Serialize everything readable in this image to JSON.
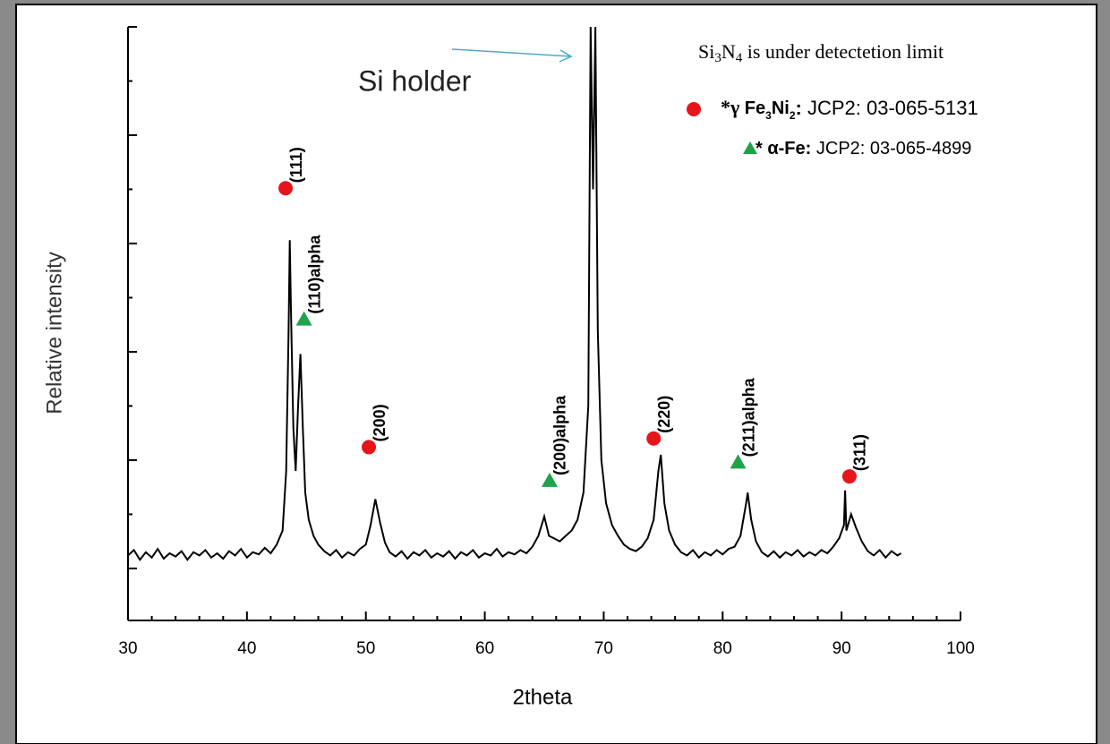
{
  "chart_data": {
    "type": "line",
    "color": "#000000",
    "x_label": "2theta",
    "y_label": "Relative intensity",
    "xlim": [
      30,
      100
    ],
    "xticks": [
      30,
      40,
      50,
      60,
      70,
      80,
      90,
      100
    ],
    "xminor_ticks": [
      32,
      34,
      36,
      38,
      42,
      44,
      46,
      48,
      52,
      54,
      56,
      58,
      62,
      64,
      66,
      68,
      72,
      74,
      76,
      78,
      82,
      84,
      86,
      88,
      92,
      94,
      96,
      98
    ],
    "ylim": [
      -0.48,
      5
    ],
    "yticks": [
      0,
      1,
      2,
      3,
      4,
      5
    ],
    "yminor_ticks": [
      0.5,
      1.5,
      2.5,
      3.5,
      4.5
    ],
    "x": [
      30,
      30.5,
      31,
      31.5,
      32,
      32.5,
      33,
      33.5,
      34,
      34.5,
      35,
      35.5,
      36,
      36.5,
      37,
      37.5,
      38,
      38.5,
      39,
      39.5,
      40,
      40.5,
      41,
      41.5,
      42,
      42.5,
      43,
      43.3,
      43.5,
      43.6,
      43.7,
      43.9,
      44.1,
      44.3,
      44.5,
      44.7,
      44.9,
      45.2,
      45.6,
      46,
      46.5,
      47,
      47.5,
      48,
      48.5,
      49,
      49.5,
      50,
      50.4,
      50.8,
      51.2,
      51.6,
      52,
      52.5,
      53,
      53.5,
      54,
      54.5,
      55,
      55.5,
      56,
      56.5,
      57,
      57.5,
      58,
      58.5,
      59,
      59.5,
      60,
      60.5,
      61,
      61.5,
      62,
      62.5,
      63,
      63.5,
      64,
      64.5,
      65,
      65.4,
      65.8,
      66.3,
      66.8,
      67.3,
      67.8,
      68.3,
      68.7,
      68.9,
      69.1,
      69.3,
      69.5,
      69.8,
      70.2,
      70.7,
      71.2,
      71.7,
      72.2,
      72.7,
      73.2,
      73.7,
      74.2,
      74.6,
      74.8,
      75.1,
      75.5,
      76,
      76.5,
      77,
      77.5,
      78,
      78.5,
      79,
      79.5,
      80,
      80.5,
      81,
      81.5,
      82,
      82.1,
      82.4,
      82.8,
      83.3,
      83.8,
      84.3,
      84.8,
      85.3,
      85.8,
      86.3,
      86.8,
      87.3,
      87.8,
      88.3,
      88.8,
      89.3,
      89.8,
      90.2,
      90.3,
      90.4,
      90.8,
      91.2,
      91.7,
      92.2,
      92.7,
      93.2,
      93.7,
      94.2,
      94.7,
      95
    ],
    "values": [
      0.12,
      0.17,
      0.08,
      0.15,
      0.1,
      0.18,
      0.09,
      0.14,
      0.11,
      0.16,
      0.08,
      0.15,
      0.12,
      0.17,
      0.1,
      0.14,
      0.09,
      0.16,
      0.12,
      0.18,
      0.1,
      0.15,
      0.13,
      0.19,
      0.14,
      0.22,
      0.35,
      0.9,
      2.2,
      3.03,
      2.4,
      1.3,
      0.9,
      1.5,
      1.98,
      1.3,
      0.7,
      0.45,
      0.3,
      0.22,
      0.16,
      0.12,
      0.17,
      0.1,
      0.15,
      0.12,
      0.18,
      0.22,
      0.4,
      0.64,
      0.42,
      0.24,
      0.15,
      0.11,
      0.16,
      0.09,
      0.15,
      0.12,
      0.17,
      0.1,
      0.14,
      0.11,
      0.16,
      0.09,
      0.15,
      0.12,
      0.17,
      0.1,
      0.14,
      0.12,
      0.18,
      0.11,
      0.15,
      0.13,
      0.17,
      0.14,
      0.2,
      0.3,
      0.48,
      0.3,
      0.28,
      0.25,
      0.3,
      0.35,
      0.45,
      0.7,
      1.5,
      5,
      3.5,
      5,
      2.2,
      1.0,
      0.6,
      0.4,
      0.3,
      0.22,
      0.18,
      0.16,
      0.2,
      0.28,
      0.45,
      0.9,
      1.05,
      0.6,
      0.35,
      0.22,
      0.15,
      0.12,
      0.17,
      0.1,
      0.15,
      0.12,
      0.17,
      0.13,
      0.18,
      0.2,
      0.3,
      0.62,
      0.7,
      0.45,
      0.25,
      0.15,
      0.11,
      0.16,
      0.1,
      0.15,
      0.12,
      0.17,
      0.11,
      0.15,
      0.12,
      0.17,
      0.14,
      0.2,
      0.28,
      0.4,
      0.72,
      0.35,
      0.5,
      0.38,
      0.25,
      0.16,
      0.12,
      0.17,
      0.1,
      0.16,
      0.12,
      0.14
    ],
    "annotations": [
      {
        "color": "#e8141b",
        "shape": "circle",
        "points": [
          {
            "x": 43.25,
            "y": 3.51,
            "label": "(111)"
          },
          {
            "x": 50.25,
            "y": 1.12,
            "label": "(200)"
          },
          {
            "x": 74.2,
            "y": 1.2,
            "label": "(220)"
          },
          {
            "x": 90.66,
            "y": 0.85,
            "label": "(311)"
          }
        ]
      },
      {
        "color": "#1fa34a",
        "shape": "triangle",
        "points": [
          {
            "x": 44.8,
            "y": 2.3,
            "label": "(110)alpha"
          },
          {
            "x": 65.45,
            "y": 0.81,
            "label": "(200)alpha"
          },
          {
            "x": 81.3,
            "y": 0.98,
            "label": "(211)alpha"
          }
        ]
      }
    ],
    "note": {
      "parts": [
        "Si",
        "3",
        "N",
        "4",
        " is under detectetion limit"
      ]
    },
    "holder_label": "Si holder",
    "legend": [
      {
        "parts": [
          "*γ  ",
          "Fe",
          "3",
          "Ni",
          "2",
          ": ",
          "JCP2: 03-065-5131"
        ]
      },
      {
        "parts": [
          "* ",
          "α-Fe:",
          " JCP2: 03-065-4899"
        ]
      }
    ]
  }
}
